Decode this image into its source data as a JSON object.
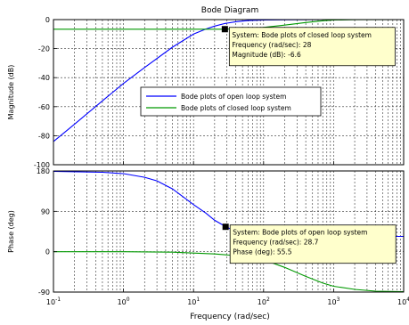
{
  "chart_data": [
    {
      "type": "line",
      "title": "Bode Diagram",
      "ylabel": "Magnitude (dB)",
      "xscale": "log",
      "xlim": [
        0.1,
        10000
      ],
      "ylim": [
        -100,
        0
      ],
      "grid": true,
      "x_ticks": [
        {
          "value": 0.1,
          "base": "10",
          "exp": "-1"
        },
        {
          "value": 1,
          "base": "10",
          "exp": "0"
        },
        {
          "value": 10,
          "base": "10",
          "exp": "1"
        },
        {
          "value": 100,
          "base": "10",
          "exp": "2"
        },
        {
          "value": 1000,
          "base": "10",
          "exp": "3"
        },
        {
          "value": 10000,
          "base": "10",
          "exp": "4"
        }
      ],
      "y_ticks": [
        {
          "value": 0,
          "label": "0"
        },
        {
          "value": -20,
          "label": "-20"
        },
        {
          "value": -40,
          "label": "-40"
        },
        {
          "value": -60,
          "label": "-60"
        },
        {
          "value": -80,
          "label": "-80"
        },
        {
          "value": -100,
          "label": "-100"
        }
      ],
      "series": [
        {
          "name": "Bode plots of open loop system",
          "color": "#0000ff",
          "points": [
            [
              0.1,
              -84
            ],
            [
              0.2,
              -72
            ],
            [
              0.5,
              -56
            ],
            [
              1,
              -44
            ],
            [
              2,
              -33
            ],
            [
              5,
              -19
            ],
            [
              10,
              -10
            ],
            [
              15,
              -6.5
            ],
            [
              20,
              -4.5
            ],
            [
              28,
              -2.7
            ],
            [
              40,
              -1.5
            ],
            [
              60,
              -0.7
            ],
            [
              100,
              -0.3
            ],
            [
              200,
              -0.1
            ],
            [
              1000,
              0
            ],
            [
              10000,
              0
            ]
          ]
        },
        {
          "name": "Bode plots of closed loop system",
          "color": "#009900",
          "points": [
            [
              0.1,
              -6.6
            ],
            [
              1,
              -6.6
            ],
            [
              10,
              -6.6
            ],
            [
              28,
              -6.6
            ],
            [
              60,
              -6.2
            ],
            [
              100,
              -5.4
            ],
            [
              200,
              -3.8
            ],
            [
              400,
              -2.0
            ],
            [
              700,
              -0.8
            ],
            [
              1000,
              -0.3
            ],
            [
              2000,
              -0.05
            ],
            [
              10000,
              0
            ]
          ]
        }
      ],
      "legend": {
        "placement": "center-right"
      },
      "marker": {
        "x": 28,
        "y": -6.6
      },
      "datatip": {
        "lines": [
          "System: Bode plots of closed loop system",
          "Frequency (rad/sec): 28",
          "Magnitude (dB): -6.6"
        ]
      }
    },
    {
      "type": "line",
      "xlabel": "Frequency (rad/sec)",
      "ylabel": "Phase (deg)",
      "xscale": "log",
      "xlim": [
        0.1,
        10000
      ],
      "ylim": [
        -90,
        180
      ],
      "grid": true,
      "x_ticks": [
        {
          "value": 0.1,
          "base": "10",
          "exp": "-1"
        },
        {
          "value": 1,
          "base": "10",
          "exp": "0"
        },
        {
          "value": 10,
          "base": "10",
          "exp": "1"
        },
        {
          "value": 100,
          "base": "10",
          "exp": "2"
        },
        {
          "value": 1000,
          "base": "10",
          "exp": "3"
        },
        {
          "value": 10000,
          "base": "10",
          "exp": "4"
        }
      ],
      "y_ticks": [
        {
          "value": 180,
          "label": "180"
        },
        {
          "value": 90,
          "label": "90"
        },
        {
          "value": 0,
          "label": "0"
        },
        {
          "value": -90,
          "label": "-90"
        }
      ],
      "series": [
        {
          "name": "Bode plots of open loop system",
          "color": "#0000ff",
          "points": [
            [
              0.1,
              179
            ],
            [
              0.5,
              177
            ],
            [
              1,
              174
            ],
            [
              2,
              166
            ],
            [
              3,
              158
            ],
            [
              5,
              140
            ],
            [
              7,
              123
            ],
            [
              10,
              105
            ],
            [
              15,
              86
            ],
            [
              20,
              70
            ],
            [
              28.7,
              56
            ],
            [
              40,
              45
            ],
            [
              60,
              38
            ],
            [
              100,
              35
            ],
            [
              1000,
              34
            ],
            [
              10000,
              34
            ]
          ]
        },
        {
          "name": "Bode plots of closed loop system",
          "color": "#009900",
          "points": [
            [
              0.1,
              0
            ],
            [
              1,
              0
            ],
            [
              5,
              -1
            ],
            [
              10,
              -3
            ],
            [
              20,
              -5
            ],
            [
              50,
              -10
            ],
            [
              100,
              -18
            ],
            [
              200,
              -35
            ],
            [
              400,
              -55
            ],
            [
              700,
              -70
            ],
            [
              1000,
              -77
            ],
            [
              2000,
              -84
            ],
            [
              4000,
              -88
            ],
            [
              10000,
              -89
            ]
          ]
        }
      ],
      "marker": {
        "x": 28.7,
        "y": 55.5
      },
      "datatip": {
        "lines": [
          "System: Bode plots of open loop system",
          "Frequency (rad/sec): 28.7",
          "Phase (deg): 55.5"
        ]
      }
    }
  ]
}
